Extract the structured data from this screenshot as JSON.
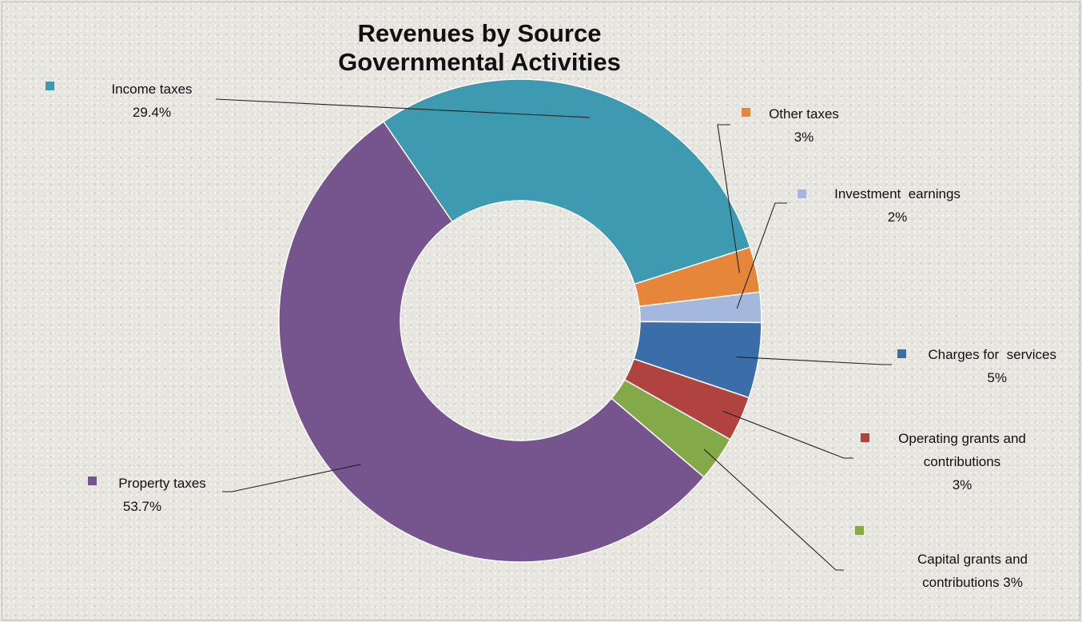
{
  "chart_data": {
    "type": "pie",
    "title": "Revenues by Source",
    "subtitle": "Governmental Activities",
    "donut": true,
    "slices": [
      {
        "name": "Income taxes",
        "value": 29.4,
        "value_label": "29.4%",
        "color": "#3e9ab0"
      },
      {
        "name": "Other taxes",
        "value": 3,
        "value_label": "3%",
        "color": "#e5863a"
      },
      {
        "name": "Investment  earnings",
        "value": 2,
        "value_label": "2%",
        "color": "#a3b8dc"
      },
      {
        "name": "Charges for  services",
        "value": 5,
        "value_label": "5%",
        "color": "#3b6ea8"
      },
      {
        "name": "Operating grants and contributions",
        "value": 3,
        "value_label": "3%",
        "color": "#b0433f"
      },
      {
        "name": "Capital grants and contributions",
        "value": 3,
        "value_label": "3%",
        "color": "#84a949"
      },
      {
        "name": "Property taxes",
        "value": 53.7,
        "value_label": "53.7%",
        "color": "#76558f"
      }
    ]
  }
}
